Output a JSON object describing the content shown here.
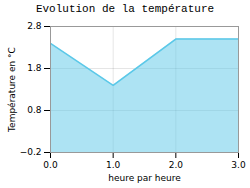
{
  "chart_data": {
    "type": "area",
    "title": "Evolution de la température",
    "xlabel": "heure par heure",
    "ylabel": "Température en °C",
    "x": [
      0,
      1,
      2,
      3
    ],
    "values": [
      2.4,
      1.4,
      2.5,
      2.5
    ],
    "color": "#5bc8e8",
    "xlim": [
      0,
      3
    ],
    "xticks": [
      0,
      1,
      2,
      3
    ],
    "ylim": [
      -0.2,
      2.8
    ],
    "yticks": [
      -0.2,
      0.8,
      1.8,
      2.8
    ],
    "grid": true
  }
}
